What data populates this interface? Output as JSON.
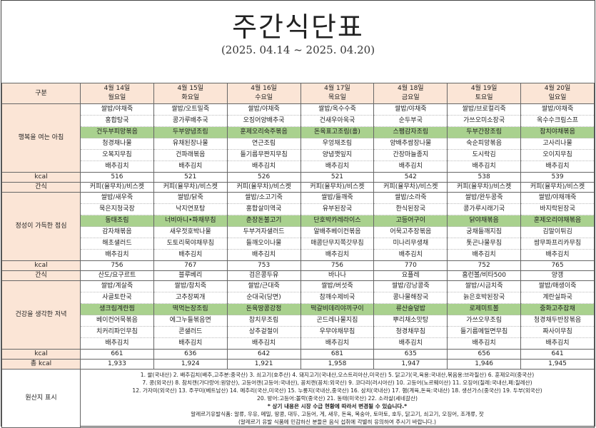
{
  "title": "주간식단표",
  "period": "(2025. 04.14 ~ 2025. 04.20)",
  "labels": {
    "gubun": "구분",
    "breakfast": "행복을 여는 아침",
    "kcal": "kcal",
    "snack": "간식",
    "lunch": "정성이 가득한 점심",
    "dinner": "건강을 생각한 저녁",
    "total": "총 kcal",
    "origin": "원산지 표시"
  },
  "days": [
    {
      "date": "4월 14일",
      "weekday": "월요일"
    },
    {
      "date": "4월 15일",
      "weekday": "화요일"
    },
    {
      "date": "4월 16일",
      "weekday": "수요일"
    },
    {
      "date": "4월 17일",
      "weekday": "목요일"
    },
    {
      "date": "4월 18일",
      "weekday": "금요일"
    },
    {
      "date": "4월 19일",
      "weekday": "토요일"
    },
    {
      "date": "4월 20일",
      "weekday": "일요일"
    }
  ],
  "breakfast": [
    [
      "쌀밥/야채죽",
      "홍합탕국",
      "건두부피망볶음",
      "청경채나물",
      "오복지무침",
      "배추김치"
    ],
    [
      "쌀밥/오트밀죽",
      "콩가루배추국",
      "두부양념조림",
      "유채된장나물",
      "건파래볶음",
      "배추김치"
    ],
    [
      "쌀밥/야채죽",
      "오징어양배추국",
      "훈제오리숙주볶음",
      "연근조림",
      "들기름무짠지무침",
      "배추김치"
    ],
    [
      "쌀밥/옥수수죽",
      "건새우아욱국",
      "돈육표고조림(홀)",
      "우엉채조림",
      "양념깻잎지",
      "배추김치"
    ],
    [
      "쌀밥/야채죽",
      "순두부국",
      "스팸감자조림",
      "양배추쌈장나물",
      "간장마늘종지",
      "배추김치"
    ],
    [
      "쌀밥/브로컬리죽",
      "가쓰오미소장국",
      "두부간장조림",
      "숙순피망볶음",
      "도시락김",
      "배추김치"
    ],
    [
      "쌀밥/야채죽",
      "옥수수크림스프",
      "참치야채볶음",
      "고사리나물",
      "오이지무침",
      "배추김치"
    ]
  ],
  "breakfast_kcal": [
    "516",
    "521",
    "526",
    "521",
    "542",
    "538",
    "539"
  ],
  "snack1": [
    "커피(율무차)/비스켓",
    "커피(율무차)/비스켓",
    "커피(율무차)/비스켓",
    "커피(율무차)/비스켓",
    "커피(율무차)/비스켓",
    "커피(율무차)/비스켓",
    "커피(율무차)/비스켓"
  ],
  "lunch": [
    [
      "쌀밥/새우죽",
      "묵은지청국장",
      "동태조림",
      "감자채볶음",
      "해초샐러드",
      "배추김치"
    ],
    [
      "쌀밥/닭죽",
      "낙지연포탕",
      "너비아니•파채무침",
      "새우젓호박나물",
      "도토리묵야채무침",
      "배추김치"
    ],
    [
      "쌀밥/소고기죽",
      "홍합살미역국",
      "춘장돈불고기",
      "두부겨자샐러드",
      "들깨오이나물",
      "배추김치"
    ],
    [
      "쌀밥/들깨죽",
      "유부된장국",
      "단호박카레라이스",
      "알배추베이컨볶음",
      "매콤단무지쪽갓무침",
      "배추김치"
    ],
    [
      "쌀밥/소라죽",
      "한식된장국",
      "고등어구이",
      "어묵고추장볶음",
      "미나리무생채",
      "배추김치"
    ],
    [
      "쌀밥/완두콩죽",
      "콩가루시래기국",
      "닭야채볶음",
      "궁채들깨지짐",
      "톳곤나물무침",
      "배추김치"
    ],
    [
      "쌀밥/야채깨죽",
      "바지락된장국",
      "훈제오리야채볶음",
      "김말이튀김",
      "쌈무파프리카무침",
      "배추김치"
    ]
  ],
  "lunch_kcal": [
    "756",
    "767",
    "753",
    "756",
    "770",
    "752",
    "765"
  ],
  "snack2": [
    "산도/요구르트",
    "블루베리",
    "검은콩두유",
    "바나나",
    "요플레",
    "홈런볼/비타500",
    "양갱"
  ],
  "dinner": [
    [
      "쌀밥/계살죽",
      "사골토란국",
      "생크림계란찜",
      "베이컨어묵볶음",
      "치커리파인무침",
      "배추김치"
    ],
    [
      "쌀밥/참치죽",
      "고추장찌개",
      "떡먹는장조림",
      "에그누들볶음면",
      "콘샐러드",
      "배추김치"
    ],
    [
      "쌀밥/근대죽",
      "순대국(당면)",
      "돈육땅콩강정",
      "참치무조림",
      "상추겉절이",
      "배추김치"
    ],
    [
      "쌀밥/버섯죽",
      "참깨수제비국",
      "떡갈비데리야끼구이",
      "곤드레나물지짐",
      "우무야채무침",
      "배추김치"
    ],
    [
      "쌀밥/강낭콩죽",
      "콩나물해장국",
      "류산슬덮밥",
      "뿌리채소맛탕",
      "청경채무침",
      "배추김치"
    ],
    [
      "쌀밥/시금치죽",
      "늙은호박된장국",
      "로제미트볼",
      "가쓰오무조림",
      "들기름메밀면무침",
      "배추김치"
    ],
    [
      "쌀밥/매생이죽",
      "계란실파국",
      "중화고추잡채",
      "청경채두반장볶음",
      "짜사이무침",
      "배추김치"
    ]
  ],
  "dinner_kcal": [
    "661",
    "636",
    "642",
    "681",
    "635",
    "656",
    "641"
  ],
  "total_kcal": [
    "1,933",
    "1,924",
    "1,921",
    "1,958",
    "1,947",
    "1,946",
    "1,945"
  ],
  "origin_lines": [
    "1. 쌀(국내산) 2. 배추김치(배추,고추분:중국산) 3. 쇠고기(호주산) 4. 돼지고기(국내산,오스트리아산,미국산) 5. 닭고기(국,육용:국내산,볶음용:브라질산) 6. 훈제오리(중국산)",
    "7. 콩(외국산) 8. 참치캔(가다랑어:원양산), 고등어캔(고등어:국내산), 꽁치캔(꽁치:외국산) 9. 코다리(러시아산) 10. 고등어(노르웨이산) 11. 오징어(칠레:국내산,페:칠레산)",
    "12. 가자미(외국산) 13. 주꾸미(베트남산) 14. 메추리(국산,미국산) 15. 누룽지(국내산,중국산) 16. 삼치(국내산) 17. 햄(계육,돈육:국내산) 18. 생선가스(중국산) 19. 두부(외국산)",
    "20. 방어:고등어:볼락(중국산) 21. 동태(미국산) 22. 소라살(세네갈산)"
  ],
  "origin_notice": "* 상기 내용은 시장 수급 현황에 따라서 변경될 수 있습니다.*",
  "origin_allergy": [
    "알레르기유발식품: 알류, 우유, 메밀, 땅콩, 대두, 고등어, 게, 새우, 돈육, 복숭아, 토마토, 호두, 닭고기, 쇠고기, 오징어, 조개류, 잣",
    "(알레르기 유발 식품에 민감하신 분들은 음식 섭취에 각별히 유의하여 주시기 바랍니다.)"
  ],
  "highlight_row_index": 2,
  "colors": {
    "header_bg": "#fbe5d6",
    "highlight": "#a9d18e"
  }
}
